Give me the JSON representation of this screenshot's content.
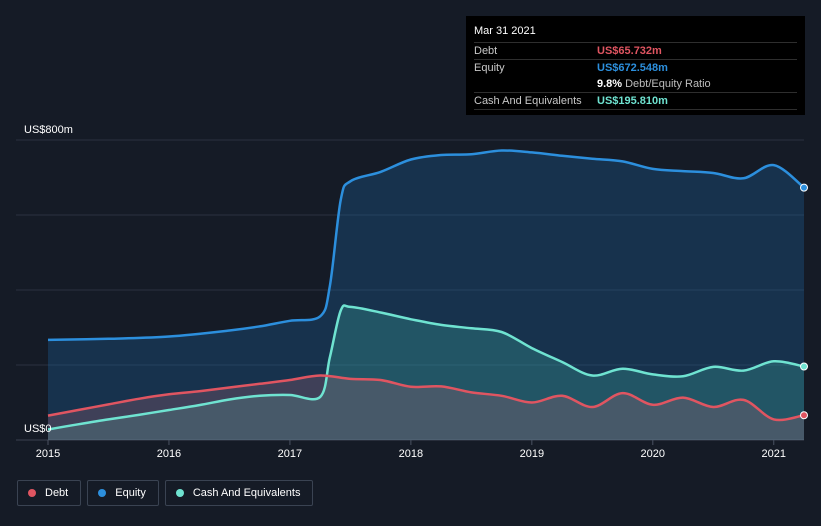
{
  "tooltip": {
    "date": "Mar 31 2021",
    "debt_label": "Debt",
    "debt_value": "US$65.732m",
    "equity_label": "Equity",
    "equity_value": "US$672.548m",
    "ratio_value": "9.8%",
    "ratio_label": "Debt/Equity Ratio",
    "cash_label": "Cash And Equivalents",
    "cash_value": "US$195.810m"
  },
  "legend": {
    "debt": "Debt",
    "equity": "Equity",
    "cash": "Cash And Equivalents"
  },
  "colors": {
    "debt": "#e05561",
    "equity": "#2c8fdd",
    "cash": "#6fe3d1",
    "background": "#151b26"
  },
  "chart_data": {
    "type": "area",
    "y_top_label": "US$800m",
    "y_bottom_label": "US$0",
    "ylim": [
      0,
      800
    ],
    "xlim": [
      2015.0,
      2021.25
    ],
    "x_ticks": [
      "2015",
      "2016",
      "2017",
      "2018",
      "2019",
      "2020",
      "2021"
    ],
    "x_tick_values": [
      2015,
      2016,
      2017,
      2018,
      2019,
      2020,
      2021
    ],
    "grid": true,
    "legend_position": "bottom-left",
    "series": [
      {
        "name": "Equity",
        "points": [
          [
            2015.0,
            267
          ],
          [
            2015.5,
            270
          ],
          [
            2016.0,
            276
          ],
          [
            2016.5,
            292
          ],
          [
            2016.75,
            303
          ],
          [
            2017.0,
            318
          ],
          [
            2017.25,
            330
          ],
          [
            2017.33,
            410
          ],
          [
            2017.42,
            640
          ],
          [
            2017.5,
            690
          ],
          [
            2017.75,
            715
          ],
          [
            2018.0,
            748
          ],
          [
            2018.25,
            760
          ],
          [
            2018.5,
            762
          ],
          [
            2018.75,
            772
          ],
          [
            2019.0,
            767
          ],
          [
            2019.25,
            758
          ],
          [
            2019.5,
            750
          ],
          [
            2019.75,
            743
          ],
          [
            2020.0,
            723
          ],
          [
            2020.25,
            717
          ],
          [
            2020.5,
            712
          ],
          [
            2020.75,
            698
          ],
          [
            2021.0,
            733
          ],
          [
            2021.25,
            673
          ]
        ]
      },
      {
        "name": "Cash And Equivalents",
        "points": [
          [
            2015.0,
            28
          ],
          [
            2015.25,
            42
          ],
          [
            2015.5,
            55
          ],
          [
            2015.75,
            67
          ],
          [
            2016.0,
            80
          ],
          [
            2016.25,
            93
          ],
          [
            2016.5,
            108
          ],
          [
            2016.75,
            118
          ],
          [
            2017.0,
            120
          ],
          [
            2017.25,
            115
          ],
          [
            2017.33,
            220
          ],
          [
            2017.42,
            345
          ],
          [
            2017.5,
            355
          ],
          [
            2017.75,
            340
          ],
          [
            2018.0,
            322
          ],
          [
            2018.25,
            307
          ],
          [
            2018.5,
            298
          ],
          [
            2018.75,
            288
          ],
          [
            2019.0,
            245
          ],
          [
            2019.25,
            208
          ],
          [
            2019.5,
            172
          ],
          [
            2019.75,
            190
          ],
          [
            2020.0,
            175
          ],
          [
            2020.25,
            170
          ],
          [
            2020.5,
            195
          ],
          [
            2020.75,
            185
          ],
          [
            2021.0,
            210
          ],
          [
            2021.25,
            196
          ]
        ]
      },
      {
        "name": "Debt",
        "points": [
          [
            2015.0,
            65
          ],
          [
            2015.25,
            80
          ],
          [
            2015.5,
            95
          ],
          [
            2015.75,
            110
          ],
          [
            2016.0,
            122
          ],
          [
            2016.25,
            130
          ],
          [
            2016.5,
            140
          ],
          [
            2016.75,
            150
          ],
          [
            2017.0,
            160
          ],
          [
            2017.25,
            172
          ],
          [
            2017.5,
            163
          ],
          [
            2017.75,
            160
          ],
          [
            2018.0,
            142
          ],
          [
            2018.25,
            143
          ],
          [
            2018.5,
            127
          ],
          [
            2018.75,
            118
          ],
          [
            2019.0,
            100
          ],
          [
            2019.25,
            118
          ],
          [
            2019.5,
            88
          ],
          [
            2019.75,
            125
          ],
          [
            2020.0,
            94
          ],
          [
            2020.25,
            113
          ],
          [
            2020.5,
            88
          ],
          [
            2020.75,
            107
          ],
          [
            2021.0,
            55
          ],
          [
            2021.25,
            66
          ]
        ]
      }
    ]
  }
}
